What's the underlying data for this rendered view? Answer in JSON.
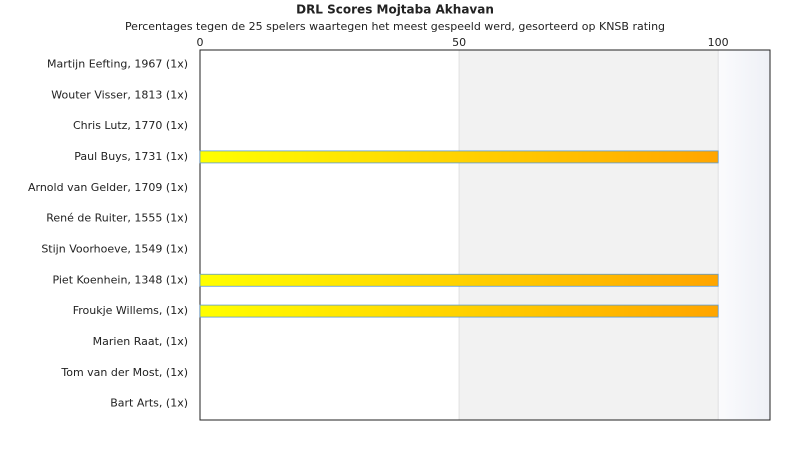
{
  "chart_data": {
    "type": "bar",
    "orientation": "horizontal",
    "title": "DRL Scores Mojtaba Akhavan",
    "subtitle": "Percentages tegen de 25 spelers waartegen het meest gespeeld werd, gesorteerd op KNSB rating",
    "categories": [
      "Martijn Eefting, 1967 (1x)",
      "Wouter Visser, 1813 (1x)",
      "Chris Lutz, 1770 (1x)",
      "Paul Buys, 1731 (1x)",
      "Arnold van Gelder, 1709 (1x)",
      "René de Ruiter, 1555 (1x)",
      "Stijn Voorhoeve, 1549 (1x)",
      "Piet Koenhein, 1348 (1x)",
      "Froukje Willems,  (1x)",
      "Marien Raat,  (1x)",
      "Tom van der Most,  (1x)",
      "Bart Arts,  (1x)"
    ],
    "values": [
      0,
      0,
      0,
      100,
      0,
      0,
      0,
      100,
      100,
      0,
      0,
      0
    ],
    "colors": [
      "#ffff00",
      "#ffa500"
    ],
    "xlim": [
      0,
      110
    ],
    "xticks": [
      0,
      50,
      100
    ]
  }
}
